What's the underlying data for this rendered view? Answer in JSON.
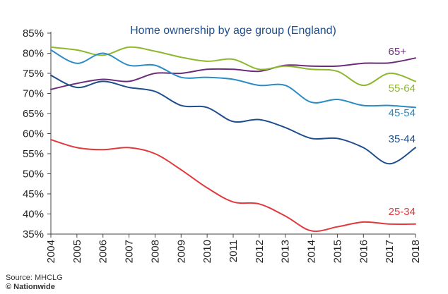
{
  "chart_data": {
    "type": "line",
    "title": "Home ownership by age group (England)",
    "xlabel": "",
    "ylabel": "",
    "x": [
      2004,
      2005,
      2006,
      2007,
      2008,
      2009,
      2010,
      2011,
      2012,
      2013,
      2014,
      2015,
      2016,
      2017,
      2018
    ],
    "x_tick_labels": [
      "2004",
      "2005",
      "2006",
      "2007",
      "2008",
      "2009",
      "2010",
      "2011",
      "2012",
      "2013",
      "2014",
      "2015",
      "2016",
      "2017",
      "2018"
    ],
    "y_ticks": [
      35,
      40,
      45,
      50,
      55,
      60,
      65,
      70,
      75,
      80,
      85
    ],
    "y_tick_labels": [
      "35%",
      "40%",
      "45%",
      "50%",
      "55%",
      "60%",
      "65%",
      "70%",
      "75%",
      "80%",
      "85%"
    ],
    "ylim": [
      35,
      85
    ],
    "xlim": [
      2004,
      2018
    ],
    "grid": false,
    "legend": "labels at line ends",
    "series": [
      {
        "name": "65+",
        "color": "#6b2d7a",
        "values": [
          71.0,
          72.5,
          73.5,
          73.0,
          75.0,
          75.0,
          76.0,
          76.0,
          75.5,
          77.0,
          76.8,
          76.8,
          77.5,
          77.6,
          78.8
        ]
      },
      {
        "name": "55-64",
        "color": "#8db82e",
        "values": [
          81.5,
          80.8,
          79.5,
          81.5,
          80.5,
          79.0,
          78.0,
          78.5,
          76.0,
          76.8,
          76.0,
          75.5,
          72.0,
          75.0,
          73.0
        ]
      },
      {
        "name": "45-54",
        "color": "#2b8bc4",
        "values": [
          80.8,
          77.5,
          80.0,
          77.0,
          77.0,
          74.0,
          74.0,
          73.5,
          72.0,
          72.0,
          67.8,
          68.5,
          67.0,
          67.0,
          66.5
        ]
      },
      {
        "name": "35-44",
        "color": "#1f4e8c",
        "values": [
          74.5,
          71.5,
          73.0,
          71.5,
          70.5,
          67.0,
          66.5,
          63.0,
          63.5,
          61.5,
          58.8,
          58.8,
          56.5,
          52.5,
          56.5
        ]
      },
      {
        "name": "25-34",
        "color": "#e0393e",
        "values": [
          58.5,
          56.5,
          56.0,
          56.5,
          55.0,
          51.0,
          46.5,
          43.0,
          42.5,
          39.5,
          35.8,
          36.8,
          38.0,
          37.5,
          37.5
        ]
      }
    ]
  },
  "footer": {
    "source": "Source: MHCLG",
    "brand": "© Nationwide"
  }
}
